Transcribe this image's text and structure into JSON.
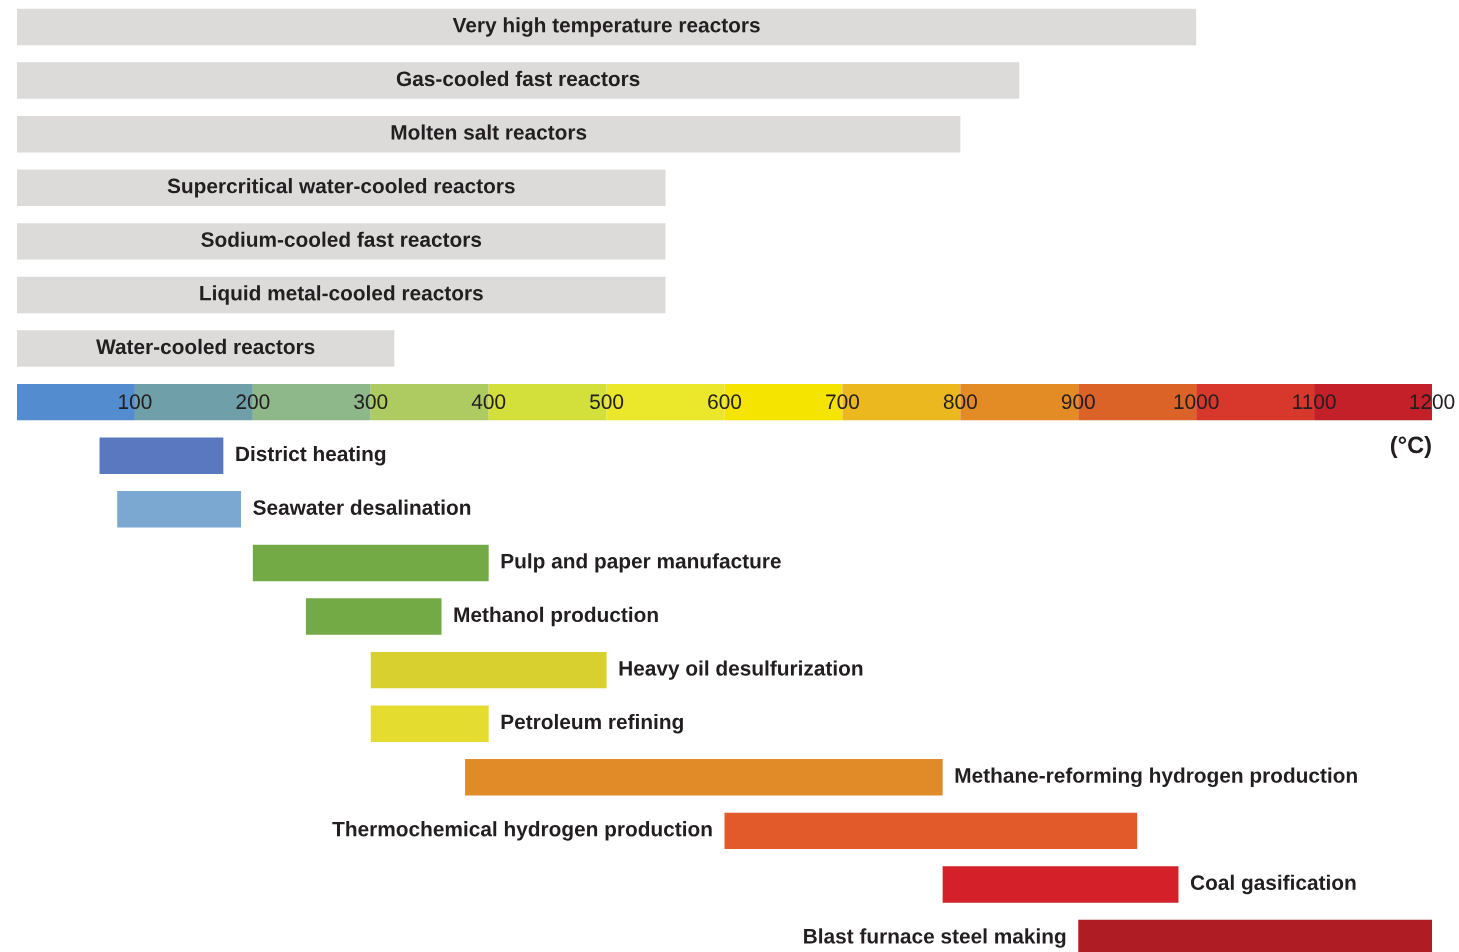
{
  "chart_data": {
    "type": "bar",
    "orientation": "horizontal",
    "categories": [
      "Very high temperature reactors",
      "Gas-cooled fast reactors",
      "Molten salt reactors",
      "Supercritical water-cooled reactors",
      "Sodium-cooled fast reactors",
      "Liquid metal-cooled reactors",
      "Water-cooled reactors",
      null,
      "District heating",
      "Seawater desalination",
      "Pulp and paper manufacture",
      "Methanol production",
      "Heavy oil desulfurization",
      "Petroleum refining",
      "Methane-reforming hydrogen production",
      "Thermochemical hydrogen production",
      "Coal gasification",
      "Blast furnace steel making"
    ],
    "base": [
      0,
      0,
      0,
      0,
      0,
      0,
      0,
      null,
      70,
      85,
      200,
      245,
      300,
      300,
      380,
      600,
      785,
      900
    ],
    "values": [
      1000,
      850,
      800,
      550,
      550,
      550,
      320,
      null,
      105,
      105,
      200,
      115,
      200,
      100,
      405,
      350,
      200,
      300
    ],
    "colors": [
      "#dcdbda",
      "#dcdbda",
      "#dcdbda",
      "#dcdbda",
      "#dcdbda",
      "#dcdbda",
      "#dcdbda",
      null,
      "#5a78c0",
      "#7aa8d0",
      "#74aa45",
      "#74aa45",
      "#d8d02e",
      "#e5dc30",
      "#e08a28",
      "#e25a2a",
      "#d42028",
      "#b01c24"
    ],
    "xlim": [
      0,
      1200
    ],
    "xticks": [
      100,
      200,
      300,
      400,
      500,
      600,
      700,
      800,
      900,
      1000,
      1100,
      1200
    ],
    "xlabel": "(°C)",
    "tick_labels": "x"
  }
}
